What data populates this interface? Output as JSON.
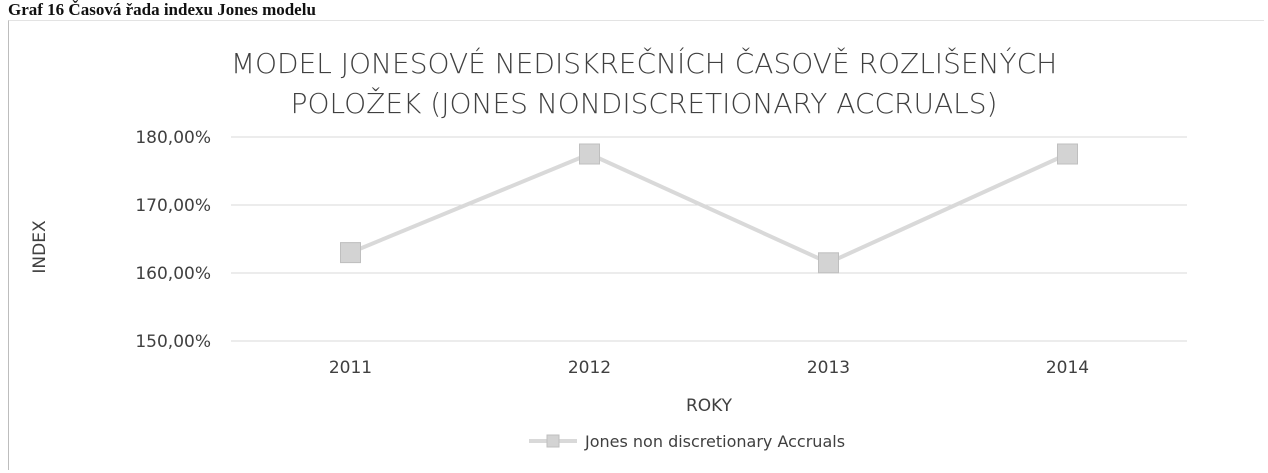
{
  "caption": "Graf 16 Časová řada indexu Jones modelu",
  "chart_data": {
    "type": "line",
    "title_lines": [
      "MODEL JONESOVÉ NEDISKREČNÍCH ČASOVĚ ROZLIŠENÝCH",
      "POLOŽEK (JONES NONDISCRETIONARY ACCRUALS)"
    ],
    "xlabel": "ROKY",
    "ylabel": "INDEX",
    "categories": [
      "2011",
      "2012",
      "2013",
      "2014"
    ],
    "series": [
      {
        "name": "Jones non discretionary Accruals",
        "values": [
          163.0,
          177.5,
          161.5,
          177.5
        ],
        "color": "#d9d9d9",
        "marker": "square"
      }
    ],
    "ylim": [
      150,
      180
    ],
    "yticks": [
      150,
      160,
      170,
      180
    ],
    "ytick_labels": [
      "150,00%",
      "160,00%",
      "170,00%",
      "180,00%"
    ],
    "grid": true,
    "legend": "bottom"
  }
}
